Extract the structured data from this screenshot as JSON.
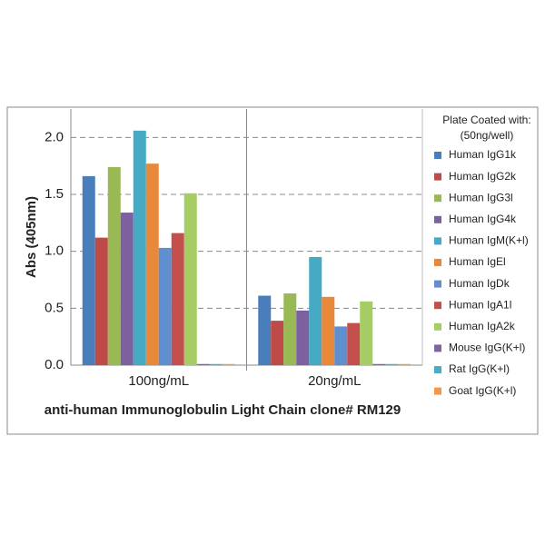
{
  "chart_data": {
    "type": "bar",
    "x_label": "anti-human Immunoglobulin Light Chain clone# RM129",
    "y_label": "Abs (405nm)",
    "legend_title": [
      "Plate Coated with:",
      "(50ng/well)"
    ],
    "categories": [
      "100ng/mL",
      "20ng/mL"
    ],
    "series": [
      {
        "name": "Human IgG1k",
        "color": "#4a7ebb",
        "values": [
          1.66,
          0.61
        ]
      },
      {
        "name": "Human IgG2k",
        "color": "#be4b48",
        "values": [
          1.12,
          0.39
        ]
      },
      {
        "name": "Human IgG3l",
        "color": "#98b954",
        "values": [
          1.74,
          0.63
        ]
      },
      {
        "name": "Human IgG4k",
        "color": "#7d60a0",
        "values": [
          1.34,
          0.48
        ]
      },
      {
        "name": "Human IgM(K+l)",
        "color": "#46aac5",
        "values": [
          2.06,
          0.95
        ]
      },
      {
        "name": "Human IgEl",
        "color": "#e8883a",
        "values": [
          1.77,
          0.6
        ]
      },
      {
        "name": "Human IgDk",
        "color": "#5f8fcf",
        "values": [
          1.03,
          0.34
        ]
      },
      {
        "name": "Human IgA1l",
        "color": "#c4504e",
        "values": [
          1.16,
          0.37
        ]
      },
      {
        "name": "Human IgA2k",
        "color": "#a6cd64",
        "values": [
          1.51,
          0.56
        ]
      },
      {
        "name": "Mouse IgG(K+l)",
        "color": "#8064a2",
        "values": [
          0.01,
          0.01
        ]
      },
      {
        "name": "Rat IgG(K+l)",
        "color": "#4bacc6",
        "values": [
          0.01,
          0.01
        ]
      },
      {
        "name": "Goat IgG(K+l)",
        "color": "#f79646",
        "values": [
          0.01,
          0.01
        ]
      }
    ],
    "ylim": [
      0,
      2.25
    ],
    "yticks": [
      {
        "value": 0,
        "label": "0.0"
      },
      {
        "value": 0.5,
        "label": "0.5"
      },
      {
        "value": 1,
        "label": "1.0"
      },
      {
        "value": 1.5,
        "label": "1.5"
      },
      {
        "value": 2,
        "label": "2.0"
      }
    ],
    "grid": true
  }
}
